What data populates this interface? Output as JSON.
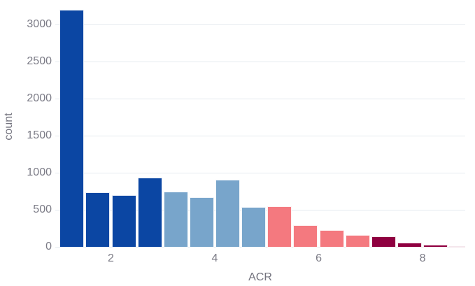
{
  "chart_data": {
    "type": "bar",
    "subtype": "histogram",
    "title": "",
    "xlabel": "ACR",
    "ylabel": "count",
    "x_ticks": [
      2,
      4,
      6,
      8
    ],
    "y_ticks": [
      0,
      500,
      1000,
      1500,
      2000,
      2500,
      3000
    ],
    "xlim": [
      0.93,
      8.82
    ],
    "ylim": [
      0,
      3330
    ],
    "bin_width": 0.5,
    "grid": "horizontal",
    "legend_position": "none",
    "bins": [
      {
        "x0": 1.0,
        "x1": 1.5,
        "count": 3200,
        "color": "#0b46a3"
      },
      {
        "x0": 1.5,
        "x1": 2.0,
        "count": 740,
        "color": "#0b46a3"
      },
      {
        "x0": 2.0,
        "x1": 2.5,
        "count": 700,
        "color": "#0b46a3"
      },
      {
        "x0": 2.5,
        "x1": 3.0,
        "count": 930,
        "color": "#0b46a3"
      },
      {
        "x0": 3.0,
        "x1": 3.5,
        "count": 745,
        "color": "#78a5cb"
      },
      {
        "x0": 3.5,
        "x1": 4.0,
        "count": 670,
        "color": "#78a5cb"
      },
      {
        "x0": 4.0,
        "x1": 4.5,
        "count": 910,
        "color": "#78a5cb"
      },
      {
        "x0": 4.5,
        "x1": 5.0,
        "count": 540,
        "color": "#78a5cb"
      },
      {
        "x0": 5.0,
        "x1": 5.5,
        "count": 550,
        "color": "#f4797f"
      },
      {
        "x0": 5.5,
        "x1": 6.0,
        "count": 290,
        "color": "#f4797f"
      },
      {
        "x0": 6.0,
        "x1": 6.5,
        "count": 225,
        "color": "#f4797f"
      },
      {
        "x0": 6.5,
        "x1": 7.0,
        "count": 160,
        "color": "#f4797f"
      },
      {
        "x0": 7.0,
        "x1": 7.5,
        "count": 140,
        "color": "#8f0040"
      },
      {
        "x0": 7.5,
        "x1": 8.0,
        "count": 55,
        "color": "#8f0040"
      },
      {
        "x0": 8.0,
        "x1": 8.5,
        "count": 25,
        "color": "#8f0040"
      },
      {
        "x0": 8.5,
        "x1": 9.0,
        "count": 12,
        "color": "#8f0040"
      }
    ],
    "colors": {
      "group_acr_1_to_3": "#0b46a3",
      "group_acr_3_to_5": "#78a5cb",
      "group_acr_5_to_7": "#f4797f",
      "group_acr_7_to_9": "#8f0040",
      "gridline": "#e5eaef",
      "tick_label": "#7b7b86",
      "axis_title": "#73737e",
      "background": "#ffffff"
    }
  }
}
